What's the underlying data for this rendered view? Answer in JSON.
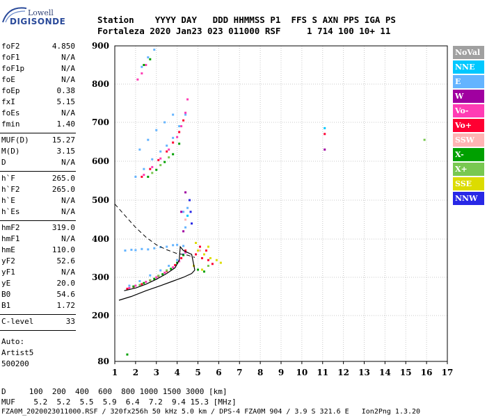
{
  "logo": {
    "line1": "Lowell",
    "line2": "DIGISONDE"
  },
  "header": {
    "row1": "Station    YYYY DAY   DDD HHMMSS P1  FFS S AXN PPS IGA PS",
    "row2": "Fortaleza 2020 Jan23 023 011000 RSF     1 714 100 10+ 11"
  },
  "params": {
    "group1": [
      {
        "name": "foF2",
        "value": "4.850"
      },
      {
        "name": "foF1",
        "value": "N/A"
      },
      {
        "name": "foF1p",
        "value": "N/A"
      },
      {
        "name": "foE",
        "value": "N/A"
      },
      {
        "name": "foEp",
        "value": "0.38"
      },
      {
        "name": "fxI",
        "value": "5.15"
      },
      {
        "name": "foEs",
        "value": "N/A"
      },
      {
        "name": "fmin",
        "value": "1.40"
      }
    ],
    "group2": [
      {
        "name": "MUF(D)",
        "value": "15.27"
      },
      {
        "name": "M(D)",
        "value": "3.15"
      },
      {
        "name": "D",
        "value": "N/A"
      }
    ],
    "group3": [
      {
        "name": "h`F",
        "value": "265.0"
      },
      {
        "name": "h`F2",
        "value": "265.0"
      },
      {
        "name": "h`E",
        "value": "N/A"
      },
      {
        "name": "h`Es",
        "value": "N/A"
      }
    ],
    "group4": [
      {
        "name": "hmF2",
        "value": "319.0"
      },
      {
        "name": "hmF1",
        "value": "N/A"
      },
      {
        "name": "hmE",
        "value": "110.0"
      },
      {
        "name": "yF2",
        "value": "52.6"
      },
      {
        "name": "yF1",
        "value": "N/A"
      },
      {
        "name": "yE",
        "value": "20.0"
      },
      {
        "name": "B0",
        "value": "54.6"
      },
      {
        "name": "B1",
        "value": "1.72"
      }
    ],
    "group5": [
      {
        "name": "C-level",
        "value": "33"
      }
    ]
  },
  "auto": {
    "line1": "Auto:",
    "line2": "Artist5",
    "line3": "500200"
  },
  "bottom": {
    "d_row": "D     100  200  400  600  800 1000 1500 3000 [km]",
    "muf_row": "MUF    5.2  5.2  5.5  5.9  6.4  7.2  9.4 15.3 [MHz]",
    "footer": "FZA0M_2020023011000.RSF / 320fx256h 50 kHz 5.0 km / DPS-4 FZA0M 904 / 3.9 S 321.6 E   Ion2Png 1.3.20"
  },
  "legend": [
    {
      "label": "NoVal",
      "color": "#a0a0a0"
    },
    {
      "label": "NNE",
      "color": "#00c8ff"
    },
    {
      "label": "E",
      "color": "#64b4ff"
    },
    {
      "label": "W",
      "color": "#a000a0"
    },
    {
      "label": "Vo-",
      "color": "#ff3cb4"
    },
    {
      "label": "Vo+",
      "color": "#ff0032"
    },
    {
      "label": "SSW",
      "color": "#ffb4b4"
    },
    {
      "label": "X-",
      "color": "#00a000"
    },
    {
      "label": "X+",
      "color": "#78c850"
    },
    {
      "label": "SSE",
      "color": "#dcdc00"
    },
    {
      "label": "NNW",
      "color": "#2828e6"
    }
  ],
  "chart_data": {
    "type": "scatter",
    "xlim": [
      1,
      17
    ],
    "ylim": [
      80,
      900
    ],
    "x_ticks": [
      1,
      2,
      3,
      4,
      5,
      6,
      7,
      8,
      9,
      10,
      11,
      12,
      13,
      14,
      15,
      16,
      17
    ],
    "y_ticks": [
      80,
      200,
      300,
      400,
      500,
      600,
      700,
      800,
      900
    ],
    "grid": true,
    "legend_position": "right",
    "series": [
      {
        "name": "E",
        "color": "#64b4ff",
        "points": [
          [
            1.5,
            370
          ],
          [
            1.8,
            372
          ],
          [
            2.0,
            371
          ],
          [
            2.3,
            374
          ],
          [
            2.6,
            373
          ],
          [
            2.9,
            376
          ],
          [
            3.2,
            379
          ],
          [
            3.5,
            380
          ],
          [
            3.8,
            384
          ],
          [
            4.0,
            385
          ],
          [
            4.3,
            382
          ],
          [
            1.7,
            278
          ],
          [
            2.2,
            290
          ],
          [
            2.7,
            305
          ],
          [
            3.2,
            318
          ],
          [
            3.6,
            330
          ],
          [
            4.0,
            345
          ],
          [
            4.3,
            360
          ],
          [
            2.0,
            560
          ],
          [
            2.4,
            580
          ],
          [
            2.8,
            605
          ],
          [
            3.2,
            625
          ],
          [
            3.5,
            640
          ],
          [
            3.8,
            660
          ],
          [
            4.1,
            690
          ],
          [
            4.4,
            720
          ],
          [
            2.2,
            630
          ],
          [
            2.6,
            655
          ],
          [
            3.0,
            680
          ],
          [
            3.4,
            700
          ],
          [
            3.8,
            720
          ],
          [
            2.3,
            845
          ],
          [
            2.6,
            870
          ],
          [
            2.9,
            890
          ],
          [
            4.3,
            470
          ],
          [
            4.4,
            430
          ],
          [
            4.5,
            480
          ]
        ]
      },
      {
        "name": "Vo+",
        "color": "#ff0032",
        "points": [
          [
            1.6,
            270
          ],
          [
            1.9,
            275
          ],
          [
            2.3,
            282
          ],
          [
            2.7,
            292
          ],
          [
            3.1,
            303
          ],
          [
            3.5,
            316
          ],
          [
            3.9,
            332
          ],
          [
            4.2,
            350
          ],
          [
            4.4,
            370
          ],
          [
            2.3,
            560
          ],
          [
            2.7,
            580
          ],
          [
            3.1,
            603
          ],
          [
            3.5,
            625
          ],
          [
            3.8,
            648
          ],
          [
            4.1,
            675
          ],
          [
            4.3,
            705
          ],
          [
            4.9,
            360
          ],
          [
            5.2,
            350
          ],
          [
            5.5,
            345
          ],
          [
            5.7,
            335
          ],
          [
            5.1,
            380
          ],
          [
            5.4,
            370
          ],
          [
            11.1,
            670
          ]
        ]
      },
      {
        "name": "Vo-",
        "color": "#ff3cb4",
        "points": [
          [
            1.7,
            272
          ],
          [
            2.0,
            278
          ],
          [
            2.5,
            288
          ],
          [
            3.0,
            300
          ],
          [
            3.4,
            312
          ],
          [
            3.8,
            326
          ],
          [
            4.1,
            342
          ],
          [
            4.4,
            365
          ],
          [
            2.4,
            565
          ],
          [
            2.8,
            585
          ],
          [
            3.2,
            607
          ],
          [
            3.6,
            630
          ],
          [
            4.0,
            662
          ],
          [
            4.2,
            690
          ],
          [
            4.4,
            725
          ],
          [
            4.5,
            760
          ],
          [
            2.1,
            812
          ],
          [
            2.3,
            828
          ],
          [
            2.5,
            850
          ]
        ]
      },
      {
        "name": "X-",
        "color": "#00a000",
        "points": [
          [
            1.9,
            276
          ],
          [
            2.4,
            285
          ],
          [
            2.9,
            296
          ],
          [
            3.3,
            308
          ],
          [
            3.7,
            322
          ],
          [
            4.0,
            338
          ],
          [
            4.3,
            358
          ],
          [
            2.6,
            560
          ],
          [
            3.0,
            578
          ],
          [
            3.4,
            598
          ],
          [
            3.8,
            618
          ],
          [
            4.1,
            645
          ],
          [
            2.4,
            850
          ],
          [
            2.7,
            865
          ],
          [
            1.6,
            98
          ],
          [
            5.0,
            320
          ],
          [
            5.3,
            315
          ]
        ]
      },
      {
        "name": "X+",
        "color": "#78c850",
        "points": [
          [
            2.2,
            280
          ],
          [
            2.7,
            292
          ],
          [
            3.1,
            304
          ],
          [
            3.5,
            318
          ],
          [
            2.8,
            570
          ],
          [
            3.2,
            590
          ],
          [
            3.6,
            610
          ],
          [
            15.9,
            655
          ],
          [
            5.5,
            330
          ]
        ]
      },
      {
        "name": "SSE",
        "color": "#dcdc00",
        "points": [
          [
            4.8,
            330
          ],
          [
            5.0,
            370
          ],
          [
            5.3,
            360
          ],
          [
            5.6,
            350
          ],
          [
            5.9,
            345
          ],
          [
            6.1,
            338
          ],
          [
            5.2,
            320
          ],
          [
            4.9,
            390
          ],
          [
            5.5,
            380
          ]
        ]
      },
      {
        "name": "W",
        "color": "#a000a0",
        "points": [
          [
            4.2,
            470
          ],
          [
            4.4,
            520
          ],
          [
            4.3,
            420
          ],
          [
            11.1,
            630
          ]
        ]
      },
      {
        "name": "NNW",
        "color": "#2828e6",
        "points": [
          [
            4.6,
            500
          ],
          [
            4.65,
            470
          ],
          [
            4.7,
            440
          ]
        ]
      },
      {
        "name": "NNE",
        "color": "#00c8ff",
        "points": [
          [
            11.1,
            685
          ],
          [
            4.5,
            460
          ]
        ]
      },
      {
        "name": "SSW",
        "color": "#ffb4b4",
        "points": [
          [
            4.4,
            450
          ],
          [
            5.1,
            370
          ]
        ]
      }
    ],
    "profile_solid_upper": [
      [
        1.45,
        265
      ],
      [
        2.0,
        272
      ],
      [
        2.5,
        282
      ],
      [
        3.0,
        295
      ],
      [
        3.5,
        310
      ],
      [
        3.9,
        325
      ],
      [
        4.1,
        345
      ],
      [
        4.15,
        380
      ],
      [
        4.3,
        370
      ],
      [
        4.5,
        365
      ],
      [
        4.7,
        360
      ],
      [
        4.85,
        319
      ]
    ],
    "profile_solid_lower": [
      [
        1.2,
        240
      ],
      [
        1.8,
        250
      ],
      [
        2.5,
        265
      ],
      [
        3.2,
        278
      ],
      [
        3.8,
        290
      ],
      [
        4.3,
        300
      ],
      [
        4.7,
        310
      ],
      [
        4.85,
        319
      ]
    ],
    "profile_dashed": [
      [
        1.0,
        490
      ],
      [
        1.5,
        460
      ],
      [
        2.0,
        430
      ],
      [
        2.5,
        405
      ],
      [
        3.0,
        385
      ],
      [
        3.5,
        372
      ],
      [
        4.0,
        362
      ],
      [
        4.5,
        358
      ],
      [
        4.85,
        352
      ]
    ]
  }
}
